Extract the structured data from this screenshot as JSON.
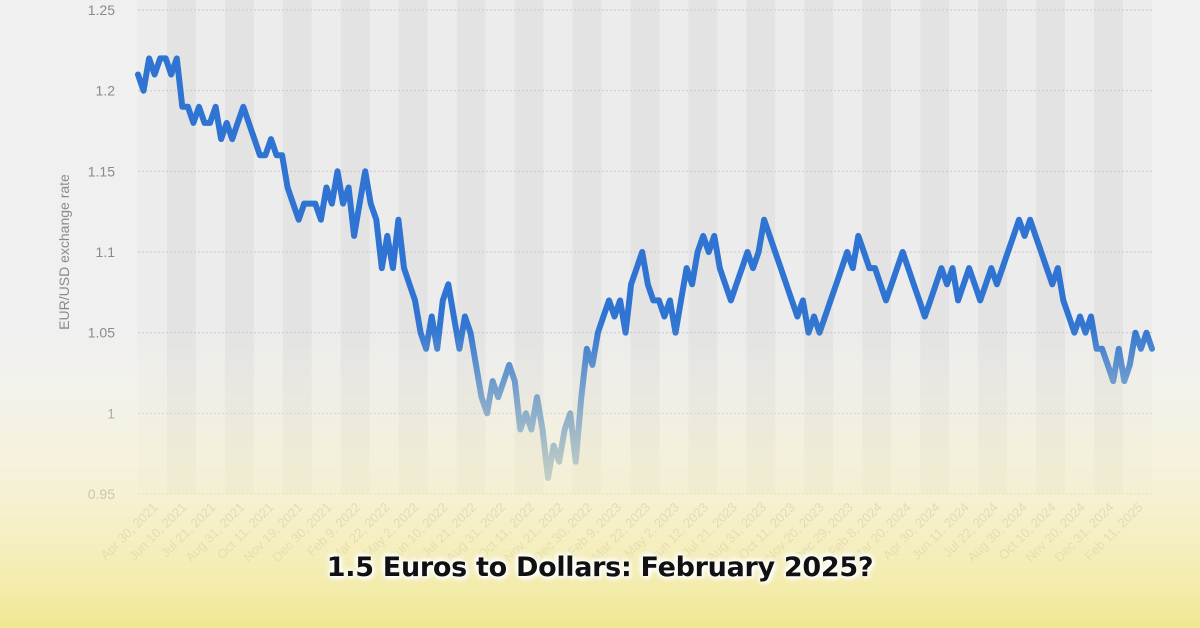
{
  "headline": "1.5 Euros to Dollars: February 2025?",
  "colors": {
    "line": "#2f74d2",
    "line_low": "#7aa0c0",
    "band_light": "#ececec",
    "band_dark": "#e3e3e3",
    "fade_yellow": "#f1e78e"
  },
  "chart_data": {
    "type": "line",
    "ylabel": "EUR/USD exchange rate",
    "ylim": [
      0.95,
      1.25
    ],
    "y_ticks": [
      "0.95",
      "1",
      "1.05",
      "1.1",
      "1.15",
      "1.2",
      "1.25"
    ],
    "x_ticks": [
      "Apr 30, 2021",
      "Jun 10, 2021",
      "Jul 21, 2021",
      "Aug 31, 2021",
      "Oct 11, 2021",
      "Nov 19, 2021",
      "Dec 30, 2021",
      "Feb 9, 2022",
      "Mar 22, 2022",
      "May 2, 2022",
      "Jun 10, 2022",
      "Jul 21, 2022",
      "Aug 31, 2022",
      "Oct 11, 2022",
      "Nov 21, 2022",
      "Dec 30, 2022",
      "Feb 9, 2023",
      "Mar 22, 2023",
      "May 2, 2023",
      "Jun 12, 2023",
      "Jul 21, 2023",
      "Aug 31, 2023",
      "Oct 11, 2023",
      "Nov 20, 2023",
      "Dec 29, 2023",
      "Feb 8, 2024",
      "Mar 20, 2024",
      "Apr 30, 2024",
      "Jun 11, 2024",
      "Jul 22, 2024",
      "Aug 30, 2024",
      "Oct 10, 2024",
      "Nov 20, 2024",
      "Dec 31, 2024",
      "Feb 11, 2025"
    ],
    "series": [
      {
        "values": [
          1.21,
          1.2,
          1.22,
          1.21,
          1.22,
          1.22,
          1.21,
          1.22,
          1.19,
          1.19,
          1.18,
          1.19,
          1.18,
          1.18,
          1.19,
          1.17,
          1.18,
          1.17,
          1.18,
          1.19,
          1.18,
          1.17,
          1.16,
          1.16,
          1.17,
          1.16,
          1.16,
          1.14,
          1.13,
          1.12,
          1.13,
          1.13,
          1.13,
          1.12,
          1.14,
          1.13,
          1.15,
          1.13,
          1.14,
          1.11,
          1.13,
          1.15,
          1.13,
          1.12,
          1.09,
          1.11,
          1.09,
          1.12,
          1.09,
          1.08,
          1.07,
          1.05,
          1.04,
          1.06,
          1.04,
          1.07,
          1.08,
          1.06,
          1.04,
          1.06,
          1.05,
          1.03,
          1.01,
          1.0,
          1.02,
          1.01,
          1.02,
          1.03,
          1.02,
          0.99,
          1.0,
          0.99,
          1.01,
          0.99,
          0.96,
          0.98,
          0.97,
          0.99,
          1.0,
          0.97,
          1.01,
          1.04,
          1.03,
          1.05,
          1.06,
          1.07,
          1.06,
          1.07,
          1.05,
          1.08,
          1.09,
          1.1,
          1.08,
          1.07,
          1.07,
          1.06,
          1.07,
          1.05,
          1.07,
          1.09,
          1.08,
          1.1,
          1.11,
          1.1,
          1.11,
          1.09,
          1.08,
          1.07,
          1.08,
          1.09,
          1.1,
          1.09,
          1.1,
          1.12,
          1.11,
          1.1,
          1.09,
          1.08,
          1.07,
          1.06,
          1.07,
          1.05,
          1.06,
          1.05,
          1.06,
          1.07,
          1.08,
          1.09,
          1.1,
          1.09,
          1.11,
          1.1,
          1.09,
          1.09,
          1.08,
          1.07,
          1.08,
          1.09,
          1.1,
          1.09,
          1.08,
          1.07,
          1.06,
          1.07,
          1.08,
          1.09,
          1.08,
          1.09,
          1.07,
          1.08,
          1.09,
          1.08,
          1.07,
          1.08,
          1.09,
          1.08,
          1.09,
          1.1,
          1.11,
          1.12,
          1.11,
          1.12,
          1.11,
          1.1,
          1.09,
          1.08,
          1.09,
          1.07,
          1.06,
          1.05,
          1.06,
          1.05,
          1.06,
          1.04,
          1.04,
          1.03,
          1.02,
          1.04,
          1.02,
          1.03,
          1.05,
          1.04,
          1.05,
          1.04
        ]
      }
    ]
  }
}
